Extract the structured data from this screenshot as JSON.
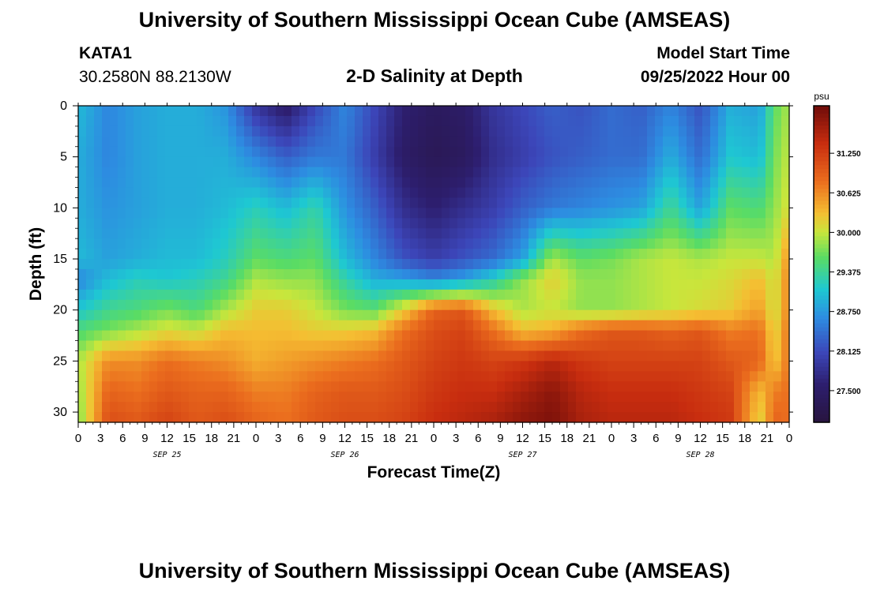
{
  "header": {
    "title": "University of Southern Mississippi Ocean Cube (AMSEAS)",
    "station_id": "KATA1",
    "coordinates": "30.2580N  88.2130W",
    "plot_title": "2-D Salinity at Depth",
    "model_start_label": "Model Start Time",
    "model_start_value": "09/25/2022 Hour 00"
  },
  "footer": {
    "title": "University of Southern Mississippi Ocean Cube (AMSEAS)"
  },
  "chart_data": {
    "type": "heatmap",
    "title": "2-D Salinity at Depth",
    "xlabel": "Forecast Time(Z)",
    "ylabel": "Depth (ft)",
    "x_hours": [
      0,
      3,
      6,
      9,
      12,
      15,
      18,
      21,
      24,
      27,
      30,
      33,
      36,
      39,
      42,
      45,
      48,
      51,
      54,
      57,
      60,
      63,
      66,
      69,
      72,
      75,
      78,
      81,
      84,
      87,
      90,
      93,
      96
    ],
    "x_tick_labels": [
      "0",
      "3",
      "6",
      "9",
      "12",
      "15",
      "18",
      "21",
      "0",
      "3",
      "6",
      "9",
      "12",
      "15",
      "18",
      "21",
      "0",
      "3",
      "6",
      "9",
      "12",
      "15",
      "18",
      "21",
      "0",
      "3",
      "6",
      "9",
      "12",
      "15",
      "18",
      "21",
      "0"
    ],
    "day_labels": [
      {
        "hour": 12,
        "label": "SEP 25"
      },
      {
        "hour": 36,
        "label": "SEP 26"
      },
      {
        "hour": 60,
        "label": "SEP 27"
      },
      {
        "hour": 84,
        "label": "SEP 28"
      }
    ],
    "xlim": [
      0,
      96
    ],
    "ylim": [
      31,
      0
    ],
    "y_ticks": [
      0,
      5,
      10,
      15,
      20,
      25,
      30
    ],
    "depths": [
      0,
      5,
      10,
      15,
      17,
      20,
      22,
      25,
      28,
      31
    ],
    "salinity": [
      [
        29.0,
        28.9,
        28.9,
        29.0,
        28.6,
        29.1,
        29.5,
        29.9,
        29.8,
        29.7
      ],
      [
        28.6,
        28.6,
        28.7,
        28.8,
        29.0,
        29.4,
        29.7,
        30.6,
        30.9,
        31.1
      ],
      [
        28.8,
        28.8,
        28.8,
        28.9,
        29.2,
        29.5,
        29.9,
        30.6,
        30.8,
        31.0
      ],
      [
        28.9,
        28.9,
        28.9,
        29.0,
        29.1,
        29.7,
        30.1,
        30.8,
        31.0,
        31.2
      ],
      [
        28.9,
        28.9,
        28.9,
        29.0,
        29.2,
        29.5,
        30.0,
        30.7,
        30.9,
        31.0
      ],
      [
        28.7,
        28.9,
        29.0,
        29.2,
        29.4,
        29.9,
        30.3,
        30.6,
        30.9,
        31.1
      ],
      [
        27.9,
        28.6,
        29.2,
        29.6,
        29.9,
        30.2,
        30.3,
        30.4,
        30.7,
        30.9
      ],
      [
        27.5,
        28.3,
        29.0,
        29.5,
        29.8,
        30.2,
        30.3,
        30.5,
        30.7,
        30.8
      ],
      [
        28.1,
        28.5,
        29.3,
        29.6,
        29.8,
        30.0,
        30.2,
        30.6,
        30.9,
        31.0
      ],
      [
        28.6,
        28.5,
        28.7,
        29.0,
        29.3,
        29.7,
        30.2,
        30.7,
        31.0,
        31.1
      ],
      [
        28.1,
        28.0,
        28.3,
        28.6,
        28.9,
        29.6,
        30.3,
        30.8,
        31.0,
        31.1
      ],
      [
        27.6,
        27.5,
        27.8,
        28.2,
        28.8,
        30.2,
        30.8,
        31.0,
        31.1,
        31.2
      ],
      [
        27.4,
        27.3,
        27.6,
        28.0,
        28.6,
        30.9,
        31.1,
        31.2,
        31.3,
        31.4
      ],
      [
        27.5,
        27.4,
        27.8,
        28.2,
        28.8,
        31.0,
        31.2,
        31.3,
        31.4,
        31.5
      ],
      [
        27.9,
        27.8,
        28.0,
        28.4,
        29.2,
        30.3,
        30.8,
        31.2,
        31.4,
        31.6
      ],
      [
        28.1,
        28.0,
        28.3,
        28.8,
        29.8,
        29.9,
        30.3,
        31.3,
        31.6,
        31.8
      ],
      [
        28.3,
        28.2,
        28.5,
        29.9,
        30.2,
        30.0,
        30.4,
        31.5,
        31.8,
        31.9
      ],
      [
        28.2,
        28.3,
        28.6,
        29.6,
        29.8,
        29.8,
        30.8,
        31.3,
        31.5,
        31.6
      ],
      [
        28.4,
        28.4,
        28.7,
        29.7,
        29.8,
        29.8,
        31.0,
        31.2,
        31.4,
        31.5
      ],
      [
        28.3,
        28.4,
        28.8,
        29.9,
        29.9,
        29.9,
        31.0,
        31.2,
        31.4,
        31.5
      ],
      [
        28.6,
        28.9,
        29.4,
        30.0,
        30.0,
        30.0,
        30.9,
        31.2,
        31.4,
        31.5
      ],
      [
        28.2,
        28.4,
        28.8,
        29.9,
        30.0,
        30.1,
        31.0,
        31.2,
        31.3,
        31.4
      ],
      [
        28.9,
        29.1,
        29.6,
        30.0,
        30.1,
        30.2,
        30.7,
        31.0,
        31.2,
        31.3
      ],
      [
        28.8,
        29.0,
        29.5,
        30.0,
        30.3,
        30.5,
        30.8,
        30.9,
        30.3,
        30.1
      ],
      [
        29.6,
        29.7,
        29.8,
        29.9,
        30.0,
        30.0,
        30.1,
        30.2,
        30.7,
        30.9
      ],
      [
        29.9,
        30.0,
        30.1,
        30.6,
        30.7,
        30.7,
        30.8,
        30.8,
        30.8,
        30.8
      ]
    ],
    "value_hours": [
      0,
      4,
      8,
      12,
      16,
      20,
      24,
      28,
      32,
      36,
      40,
      44,
      48,
      52,
      56,
      60,
      64,
      68,
      72,
      76,
      80,
      84,
      88,
      92,
      94,
      96
    ],
    "colorbar": {
      "unit": "psu",
      "min": 27.0,
      "max": 32.0,
      "ticks": [
        "31.250",
        "30.625",
        "30.000",
        "29.375",
        "28.750",
        "28.125",
        "27.500"
      ],
      "tick_values": [
        31.25,
        30.625,
        30.0,
        29.375,
        28.75,
        28.125,
        27.5
      ]
    }
  }
}
